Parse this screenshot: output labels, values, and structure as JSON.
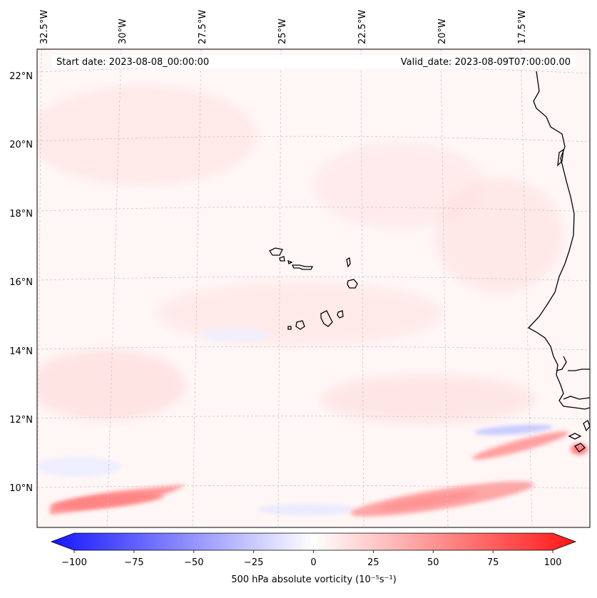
{
  "map": {
    "start_date_label": "Start date: 2023-08-08_00:00:00",
    "valid_date_label": "Valid_date: 2023-08-09T07:00:00.00",
    "variable": "500 hPa absolute vorticity",
    "units": "(10⁻⁵s⁻¹)",
    "colorbar_title": "500 hPa absolute vorticity (10⁻⁵s⁻¹)",
    "colormap": "bwr",
    "colors": {
      "min": "#0000ff",
      "mid": "#ffffff",
      "max": "#ff0000",
      "coast": "#000000",
      "grid": "#bbbbbb"
    }
  },
  "chart_data": {
    "type": "heatmap",
    "lon_ticks": [
      "32.5°W",
      "30°W",
      "27.5°W",
      "25°W",
      "22.5°W",
      "20°W",
      "17.5°W"
    ],
    "lat_ticks": [
      "22°N",
      "20°N",
      "18°N",
      "16°N",
      "14°N",
      "12°N",
      "10°N"
    ],
    "extent": {
      "lon": [
        -33.0,
        -16.0
      ],
      "lat": [
        8.9,
        22.8
      ]
    },
    "colorbar": {
      "range": [
        -100,
        100
      ],
      "ticks": [
        -100,
        -75,
        -50,
        -25,
        0,
        25,
        50,
        75,
        100
      ],
      "tick_labels": [
        "−100",
        "−75",
        "−50",
        "−25",
        "0",
        "25",
        "50",
        "75",
        "100"
      ],
      "extend": "both",
      "n_levels": 41
    },
    "features": [
      {
        "name": "weak positive vorticity background",
        "lon": [
          -33.0,
          -16.0
        ],
        "lat": [
          13.0,
          22.8
        ],
        "value": 8
      },
      {
        "name": "positive vorticity band south-west",
        "lon": [
          -32.5,
          -27.5
        ],
        "lat": [
          9.4,
          9.9
        ],
        "value": 40
      },
      {
        "name": "positive vorticity band south-east",
        "lon": [
          -24.0,
          -18.0
        ],
        "lat": [
          9.2,
          10.2
        ],
        "value": 40
      },
      {
        "name": "negative vorticity patch near coast",
        "lon": [
          -20.0,
          -17.0
        ],
        "lat": [
          11.4,
          11.8
        ],
        "value": -20
      },
      {
        "name": "positive vorticity band near coast",
        "lon": [
          -20.5,
          -16.5
        ],
        "lat": [
          10.7,
          11.3
        ],
        "value": 35
      }
    ]
  }
}
